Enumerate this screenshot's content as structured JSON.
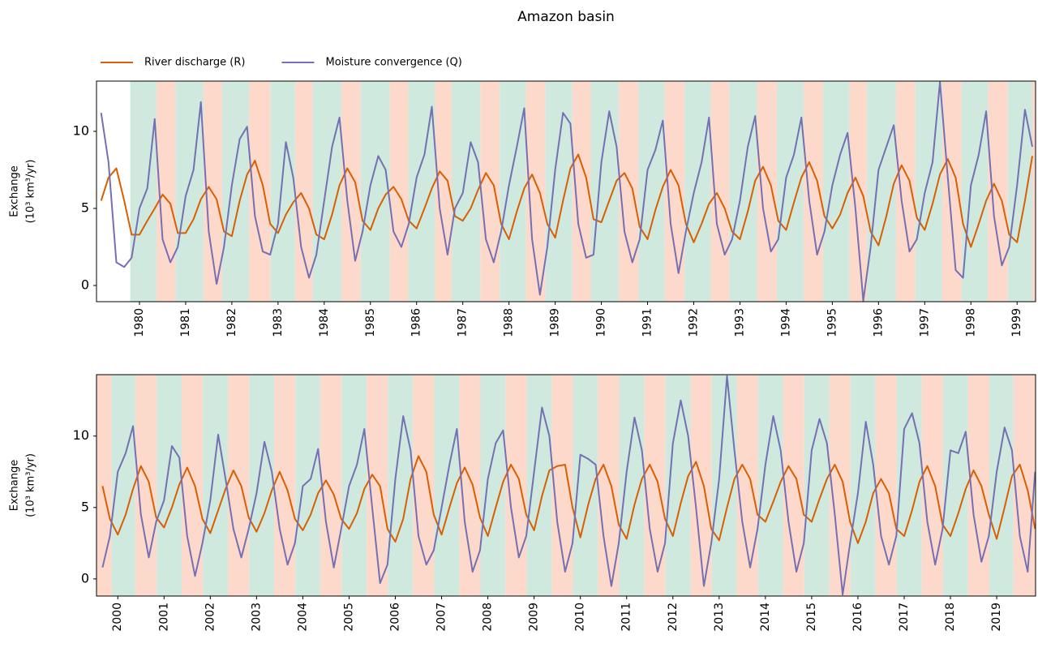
{
  "chart_data": [
    {
      "type": "line",
      "title": "Amazon basin",
      "ylabel": [
        "Exchange",
        "(10³ km³/yr)"
      ],
      "legend": "upper left",
      "xlim": [
        1979.07,
        1999.4
      ],
      "ylim": [
        -1.05,
        13.26
      ],
      "yticks": [
        0,
        5,
        10
      ],
      "xticks": [
        1980,
        1981,
        1982,
        1983,
        1984,
        1985,
        1986,
        1987,
        1988,
        1989,
        1990,
        1991,
        1992,
        1993,
        1994,
        1995,
        1996,
        1997,
        1998,
        1999
      ],
      "shading_colors": [
        "#cfe9de",
        "#fcd9cb"
      ],
      "shading_edges": [
        1979.8,
        1980.37,
        1980.78,
        1981.39,
        1981.79,
        1982.37,
        1982.84,
        1983.37,
        1983.75,
        1984.37,
        1984.79,
        1985.42,
        1985.82,
        1986.4,
        1986.76,
        1987.38,
        1987.8,
        1988.37,
        1988.79,
        1989.37,
        1989.77,
        1990.38,
        1990.8,
        1991.37,
        1991.8,
        1992.37,
        1992.77,
        1993.37,
        1993.8,
        1994.38,
        1994.8,
        1995.37,
        1995.75,
        1996.38,
        1996.8,
        1997.38,
        1997.8,
        1998.37,
        1998.8,
        1999.33,
        1999.4
      ],
      "x": [
        1979.17,
        1979.33,
        1979.5,
        1979.67,
        1979.83,
        1980,
        1980.17,
        1980.33,
        1980.5,
        1980.67,
        1980.83,
        1981,
        1981.17,
        1981.33,
        1981.5,
        1981.67,
        1981.83,
        1982,
        1982.17,
        1982.33,
        1982.5,
        1982.67,
        1982.83,
        1983,
        1983.17,
        1983.33,
        1983.5,
        1983.67,
        1983.83,
        1984,
        1984.17,
        1984.33,
        1984.5,
        1984.67,
        1984.83,
        1985,
        1985.17,
        1985.33,
        1985.5,
        1985.67,
        1985.83,
        1986,
        1986.17,
        1986.33,
        1986.5,
        1986.67,
        1986.83,
        1987,
        1987.17,
        1987.33,
        1987.5,
        1987.67,
        1987.83,
        1988,
        1988.17,
        1988.33,
        1988.5,
        1988.67,
        1988.83,
        1989,
        1989.17,
        1989.33,
        1989.5,
        1989.67,
        1989.83,
        1990,
        1990.17,
        1990.33,
        1990.5,
        1990.67,
        1990.83,
        1991,
        1991.17,
        1991.33,
        1991.5,
        1991.67,
        1991.83,
        1992,
        1992.17,
        1992.33,
        1992.5,
        1992.67,
        1992.83,
        1993,
        1993.17,
        1993.33,
        1993.5,
        1993.67,
        1993.83,
        1994,
        1994.17,
        1994.33,
        1994.5,
        1994.67,
        1994.83,
        1995,
        1995.17,
        1995.33,
        1995.5,
        1995.67,
        1995.83,
        1996,
        1996.17,
        1996.33,
        1996.5,
        1996.67,
        1996.83,
        1997,
        1997.17,
        1997.33,
        1997.5,
        1997.67,
        1997.83,
        1998,
        1998.17,
        1998.33,
        1998.5,
        1998.67,
        1998.83,
        1999,
        1999.17,
        1999.33
      ],
      "series": [
        {
          "name": "River discharge (R)",
          "color": "#d95f02",
          "values": [
            5.5,
            7.0,
            7.6,
            5.5,
            3.3,
            3.3,
            4.2,
            5.0,
            5.9,
            5.3,
            3.4,
            3.4,
            4.3,
            5.6,
            6.4,
            5.6,
            3.5,
            3.2,
            5.5,
            7.2,
            8.1,
            6.5,
            4.0,
            3.4,
            4.6,
            5.4,
            6.0,
            5.0,
            3.3,
            3.0,
            4.6,
            6.5,
            7.6,
            6.7,
            4.2,
            3.6,
            5.0,
            5.9,
            6.4,
            5.6,
            4.2,
            3.7,
            5.0,
            6.3,
            7.4,
            6.8,
            4.5,
            4.2,
            5.0,
            6.2,
            7.3,
            6.5,
            4.0,
            3.0,
            4.8,
            6.3,
            7.2,
            6.0,
            4.0,
            3.1,
            5.5,
            7.6,
            8.5,
            7.0,
            4.3,
            4.1,
            5.5,
            6.8,
            7.3,
            6.3,
            3.8,
            3.0,
            4.9,
            6.4,
            7.5,
            6.5,
            4.0,
            2.8,
            4.0,
            5.3,
            6.0,
            5.0,
            3.5,
            3.0,
            4.8,
            6.8,
            7.7,
            6.5,
            4.2,
            3.6,
            5.4,
            7.0,
            8.0,
            6.8,
            4.5,
            3.7,
            4.6,
            6.0,
            7.0,
            5.8,
            3.5,
            2.6,
            4.5,
            6.6,
            7.8,
            6.8,
            4.4,
            3.6,
            5.3,
            7.2,
            8.2,
            7.0,
            4.0,
            2.5,
            4.0,
            5.5,
            6.6,
            5.5,
            3.3,
            2.8,
            5.5,
            8.4
          ]
        },
        {
          "name": "Moisture convergence (Q)",
          "color": "#7570b3",
          "values": [
            11.2,
            8.0,
            1.5,
            1.2,
            1.8,
            5.0,
            6.3,
            10.8,
            3.0,
            1.5,
            2.5,
            5.8,
            7.5,
            11.9,
            3.5,
            0.1,
            2.5,
            6.5,
            9.5,
            10.3,
            4.5,
            2.2,
            2.0,
            4.0,
            9.3,
            7.0,
            2.5,
            0.5,
            2.0,
            5.5,
            9.0,
            10.9,
            5.5,
            1.6,
            3.5,
            6.5,
            8.4,
            7.5,
            3.5,
            2.5,
            4.0,
            7.0,
            8.5,
            11.6,
            5.0,
            2.0,
            5.0,
            6.0,
            9.3,
            8.0,
            3.0,
            1.5,
            3.5,
            6.5,
            9.0,
            11.5,
            3.0,
            -0.6,
            2.5,
            7.5,
            11.2,
            10.5,
            4.0,
            1.8,
            2.0,
            8.0,
            11.3,
            9.0,
            3.5,
            1.5,
            3.0,
            7.5,
            8.8,
            10.7,
            4.0,
            0.8,
            3.5,
            6.0,
            8.0,
            10.9,
            4.0,
            2.0,
            3.0,
            5.5,
            9.0,
            11.0,
            5.0,
            2.2,
            3.0,
            7.0,
            8.5,
            10.9,
            5.5,
            2.0,
            3.5,
            6.5,
            8.5,
            9.9,
            5.0,
            -1.0,
            2.5,
            7.5,
            9.0,
            10.4,
            5.5,
            2.2,
            3.0,
            6.0,
            8.0,
            13.2,
            7.0,
            1.0,
            0.5,
            6.5,
            8.5,
            11.3,
            4.5,
            1.3,
            2.5,
            6.5,
            11.4,
            9.0
          ]
        }
      ]
    },
    {
      "type": "line",
      "ylabel": [
        "Exchange",
        "(10³ km³/yr)"
      ],
      "xlim": [
        1999.54,
        2019.84
      ],
      "ylim": [
        -1.2,
        14.3
      ],
      "yticks": [
        0,
        5,
        10
      ],
      "xticks": [
        2000,
        2001,
        2002,
        2003,
        2004,
        2005,
        2006,
        2007,
        2008,
        2009,
        2010,
        2011,
        2012,
        2013,
        2014,
        2015,
        2016,
        2017,
        2018,
        2019
      ],
      "shading_colors": [
        "#fcd9cb",
        "#cfe9de"
      ],
      "shading_edges": [
        1999.54,
        1999.87,
        2000.38,
        2000.84,
        2001.38,
        2001.84,
        2002.38,
        2002.84,
        2003.38,
        2003.84,
        2004.38,
        2004.84,
        2005.38,
        2005.84,
        2006.38,
        2006.84,
        2007.38,
        2007.84,
        2008.38,
        2008.84,
        2009.38,
        2009.84,
        2010.38,
        2010.84,
        2011.38,
        2011.84,
        2012.38,
        2012.84,
        2013.38,
        2013.84,
        2014.38,
        2014.84,
        2015.38,
        2015.84,
        2016.38,
        2016.84,
        2017.38,
        2017.84,
        2018.38,
        2018.84,
        2019.36,
        2019.84
      ],
      "x": [
        1999.67,
        1999.83,
        2000,
        2000.17,
        2000.33,
        2000.5,
        2000.67,
        2000.83,
        2001,
        2001.17,
        2001.33,
        2001.5,
        2001.67,
        2001.83,
        2002,
        2002.17,
        2002.33,
        2002.5,
        2002.67,
        2002.83,
        2003,
        2003.17,
        2003.33,
        2003.5,
        2003.67,
        2003.83,
        2004,
        2004.17,
        2004.33,
        2004.5,
        2004.67,
        2004.83,
        2005,
        2005.17,
        2005.33,
        2005.5,
        2005.67,
        2005.83,
        2006,
        2006.17,
        2006.33,
        2006.5,
        2006.67,
        2006.83,
        2007,
        2007.17,
        2007.33,
        2007.5,
        2007.67,
        2007.83,
        2008,
        2008.17,
        2008.33,
        2008.5,
        2008.67,
        2008.83,
        2009,
        2009.17,
        2009.33,
        2009.5,
        2009.67,
        2009.83,
        2010,
        2010.17,
        2010.33,
        2010.5,
        2010.67,
        2010.83,
        2011,
        2011.17,
        2011.33,
        2011.5,
        2011.67,
        2011.83,
        2012,
        2012.17,
        2012.33,
        2012.5,
        2012.67,
        2012.83,
        2013,
        2013.17,
        2013.33,
        2013.5,
        2013.67,
        2013.83,
        2014,
        2014.17,
        2014.33,
        2014.5,
        2014.67,
        2014.83,
        2015,
        2015.17,
        2015.33,
        2015.5,
        2015.67,
        2015.83,
        2016,
        2016.17,
        2016.33,
        2016.5,
        2016.67,
        2016.83,
        2017,
        2017.17,
        2017.33,
        2017.5,
        2017.67,
        2017.83,
        2018,
        2018.17,
        2018.33,
        2018.5,
        2018.67,
        2018.83,
        2019,
        2019.17,
        2019.33,
        2019.5,
        2019.67,
        2019.83
      ],
      "series": [
        {
          "color": "#d95f02",
          "values": [
            6.5,
            4.2,
            3.1,
            4.5,
            6.3,
            7.9,
            6.8,
            4.3,
            3.6,
            5.0,
            6.6,
            7.8,
            6.5,
            4.2,
            3.2,
            4.8,
            6.3,
            7.6,
            6.5,
            4.3,
            3.3,
            4.6,
            6.2,
            7.5,
            6.2,
            4.2,
            3.4,
            4.5,
            6.0,
            6.9,
            5.9,
            4.2,
            3.5,
            4.6,
            6.3,
            7.3,
            6.5,
            3.5,
            2.6,
            4.2,
            7.0,
            8.6,
            7.5,
            4.5,
            3.1,
            5.0,
            6.7,
            7.8,
            6.6,
            4.3,
            3.0,
            5.0,
            6.8,
            8.0,
            7.0,
            4.5,
            3.4,
            5.8,
            7.6,
            7.9,
            8.0,
            5.0,
            2.9,
            5.2,
            7.0,
            8.0,
            6.5,
            3.8,
            2.8,
            5.2,
            7.0,
            8.0,
            6.8,
            4.2,
            3.0,
            5.3,
            7.2,
            8.2,
            6.5,
            3.5,
            2.7,
            5.0,
            7.0,
            8.0,
            7.0,
            4.5,
            4.0,
            5.4,
            6.8,
            7.9,
            7.0,
            4.5,
            4.0,
            5.6,
            7.0,
            8.0,
            6.8,
            4.0,
            2.5,
            4.0,
            6.0,
            7.0,
            6.0,
            3.5,
            3.0,
            4.8,
            6.8,
            7.9,
            6.5,
            3.8,
            3.0,
            4.6,
            6.3,
            7.6,
            6.5,
            4.5,
            2.8,
            5.0,
            7.2,
            8.0,
            6.2,
            3.5
          ]
        },
        {
          "color": "#7570b3",
          "values": [
            0.8,
            3.0,
            7.5,
            8.8,
            10.7,
            4.5,
            1.5,
            4.0,
            5.5,
            9.3,
            8.5,
            3.0,
            0.2,
            2.5,
            5.5,
            10.1,
            7.0,
            3.5,
            1.5,
            3.5,
            6.0,
            9.6,
            7.5,
            3.5,
            1.0,
            2.5,
            6.5,
            7.0,
            9.1,
            4.0,
            0.8,
            3.5,
            6.5,
            8.0,
            10.5,
            5.0,
            -0.3,
            1.0,
            7.0,
            11.4,
            9.0,
            3.0,
            1.0,
            2.0,
            5.0,
            8.0,
            10.5,
            4.0,
            0.5,
            2.0,
            7.0,
            9.5,
            10.4,
            5.0,
            1.5,
            3.0,
            7.5,
            12.0,
            10.0,
            4.0,
            0.5,
            2.5,
            8.7,
            8.4,
            8.0,
            3.0,
            -0.5,
            2.5,
            7.5,
            11.3,
            9.0,
            3.5,
            0.5,
            2.5,
            9.5,
            12.5,
            10.0,
            5.0,
            -0.5,
            2.5,
            7.0,
            14.2,
            9.0,
            4.0,
            0.8,
            3.5,
            8.0,
            11.4,
            9.0,
            4.0,
            0.5,
            2.5,
            9.0,
            11.2,
            9.5,
            4.5,
            -1.1,
            2.5,
            6.0,
            11.0,
            8.0,
            3.0,
            1.0,
            3.0,
            10.5,
            11.6,
            9.5,
            4.0,
            1.0,
            3.5,
            9.0,
            8.8,
            10.3,
            4.5,
            1.2,
            3.0,
            7.5,
            10.6,
            9.0,
            3.0,
            0.5,
            7.5
          ]
        }
      ]
    }
  ]
}
